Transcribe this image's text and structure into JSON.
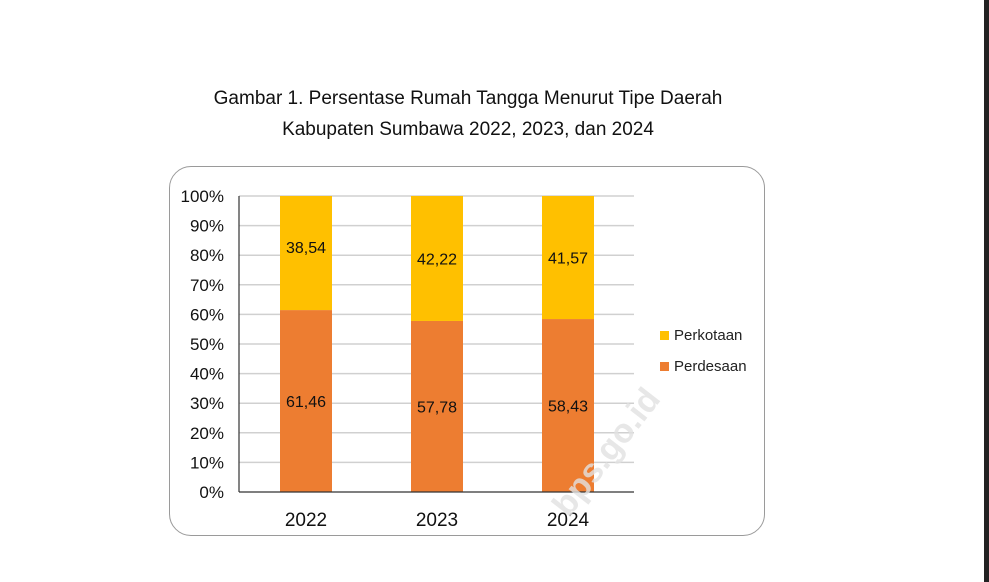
{
  "chart_data": {
    "type": "bar",
    "stacked": true,
    "title": "Gambar 1. Persentase Rumah Tangga Menurut Tipe Daerah",
    "subtitle": "Kabupaten Sumbawa 2022, 2023, dan 2024",
    "categories": [
      "2022",
      "2023",
      "2024"
    ],
    "series": [
      {
        "name": "Perdesaan",
        "values": [
          61.46,
          57.78,
          58.43
        ],
        "labels": [
          "61,46",
          "57,78",
          "58,43"
        ],
        "color": "#ED7D31"
      },
      {
        "name": "Perkotaan",
        "values": [
          38.54,
          42.22,
          41.57
        ],
        "labels": [
          "38,54",
          "42,22",
          "41,57"
        ],
        "color": "#FFC000"
      }
    ],
    "ylim": [
      0,
      100
    ],
    "yticks": [
      "0%",
      "10%",
      "20%",
      "30%",
      "40%",
      "50%",
      "60%",
      "70%",
      "80%",
      "90%",
      "100%"
    ],
    "grid": true,
    "legend": {
      "placement": "right",
      "entries": [
        "Perkotaan",
        "Perdesaan"
      ]
    },
    "xlabel": "",
    "ylabel": ""
  },
  "watermark": "bps.go.id"
}
